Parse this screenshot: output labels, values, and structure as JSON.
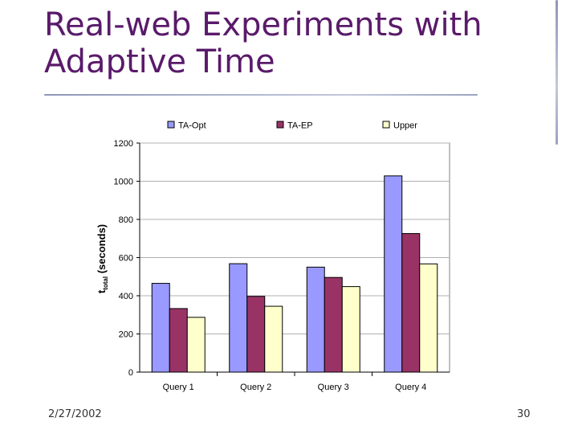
{
  "slide": {
    "title_line1": "Real-web Experiments with",
    "title_line2": "Adaptive Time",
    "date": "2/27/2002",
    "page_number": "30"
  },
  "colors": {
    "title": "#5a1a6a",
    "series": [
      "#9999ff",
      "#993366",
      "#ffffcc"
    ]
  },
  "chart_data": {
    "type": "bar",
    "categories": [
      "Query 1",
      "Query 2",
      "Query 3",
      "Query 4"
    ],
    "series": [
      {
        "name": "TA-Opt",
        "values": [
          465,
          568,
          550,
          1028
        ]
      },
      {
        "name": "TA-EP",
        "values": [
          333,
          397,
          496,
          726
        ]
      },
      {
        "name": "Upper",
        "values": [
          287,
          345,
          448,
          567
        ]
      }
    ],
    "ylabel_main": "t",
    "ylabel_sub": "total",
    "ylabel_rest": " (seconds)",
    "ylim": [
      0,
      1200
    ],
    "yticks": [
      0,
      200,
      400,
      600,
      800,
      1000,
      1200
    ],
    "grid": true,
    "legend": "top"
  }
}
